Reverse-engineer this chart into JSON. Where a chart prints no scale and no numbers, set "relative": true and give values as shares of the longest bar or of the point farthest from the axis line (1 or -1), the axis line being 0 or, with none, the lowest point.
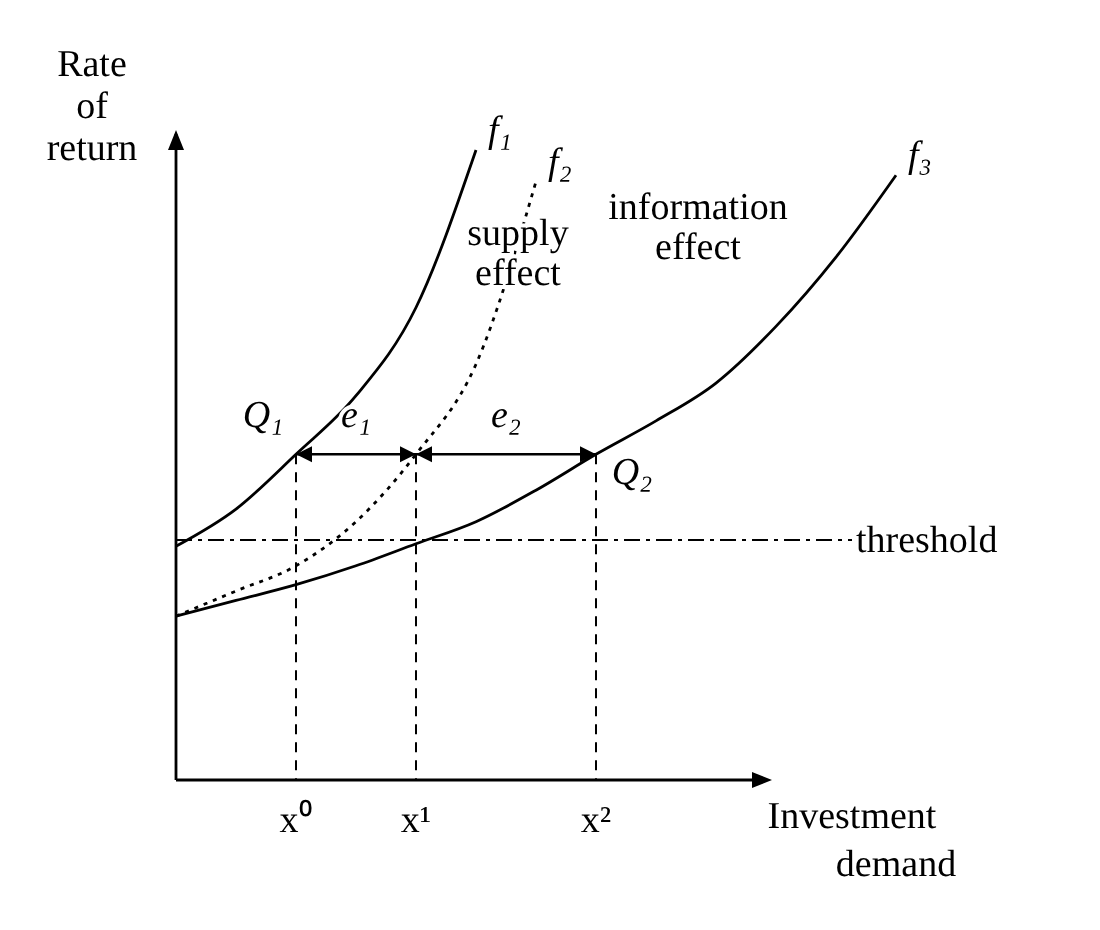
{
  "chart_data": {
    "type": "line",
    "relative": true,
    "xlabel": "Investment demand",
    "ylabel": "Rate of return",
    "categories": [
      null,
      null,
      "x⁰",
      null,
      "x¹",
      null,
      null,
      "x²",
      null,
      null,
      null,
      null,
      null
    ],
    "legend": false,
    "series": [
      {
        "name": "f₁",
        "color": "#000000",
        "line_style": "solid",
        "values": [
          0.371,
          0.43,
          0.517,
          0.61,
          0.75,
          1.0,
          null,
          null,
          null,
          null,
          null,
          null,
          null
        ]
      },
      {
        "name": "f₂",
        "color": "#000000",
        "line_style": "dotted",
        "values": [
          0.26,
          0.3,
          0.34,
          0.41,
          0.517,
          0.66,
          0.95,
          null,
          null,
          null,
          null,
          null,
          null
        ]
      },
      {
        "name": "f₃",
        "color": "#000000",
        "line_style": "solid",
        "values": [
          0.26,
          0.285,
          0.31,
          0.34,
          0.375,
          0.41,
          0.46,
          0.517,
          0.57,
          0.63,
          0.72,
          0.83,
          0.96
        ]
      }
    ],
    "ref_lines": [
      {
        "axis": "y",
        "value": 0.381,
        "label": "threshold",
        "line_style": "dashdot"
      }
    ],
    "annotations": [
      "Q₁",
      "Q₂",
      "e₁",
      "e₂",
      "supply effect",
      "information effect"
    ]
  }
}
